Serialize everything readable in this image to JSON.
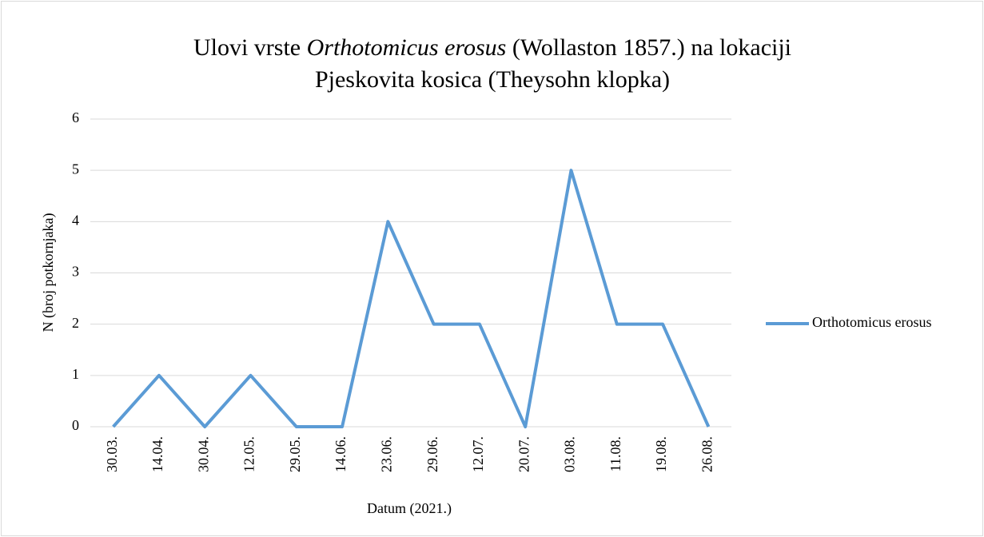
{
  "chart_data": {
    "type": "line",
    "title_lines": [
      "Ulovi vrste Orthotomicus erosus (Wollaston 1857.) na lokaciji",
      "Pjeskovita kosica (Theysohn klopka)"
    ],
    "title_italic": "Orthotomicus erosus",
    "x_label": "Datum (2021.)",
    "y_label": "N (broj potkornjaka)",
    "categories": [
      "30.03.",
      "14.04.",
      "30.04.",
      "12.05.",
      "29.05.",
      "14.06.",
      "23.06.",
      "29.06.",
      "12.07.",
      "20.07.",
      "03.08.",
      "11.08.",
      "19.08.",
      "26.08."
    ],
    "series": [
      {
        "name": "Orthotomicus erosus",
        "color": "#5b9bd5",
        "values": [
          0,
          1,
          0,
          1,
          0,
          0,
          4,
          2,
          2,
          0,
          5,
          2,
          2,
          0
        ]
      }
    ],
    "ylim": [
      0,
      6
    ],
    "yticks": [
      0,
      1,
      2,
      3,
      4,
      5,
      6
    ],
    "grid": true,
    "legend": "right"
  }
}
